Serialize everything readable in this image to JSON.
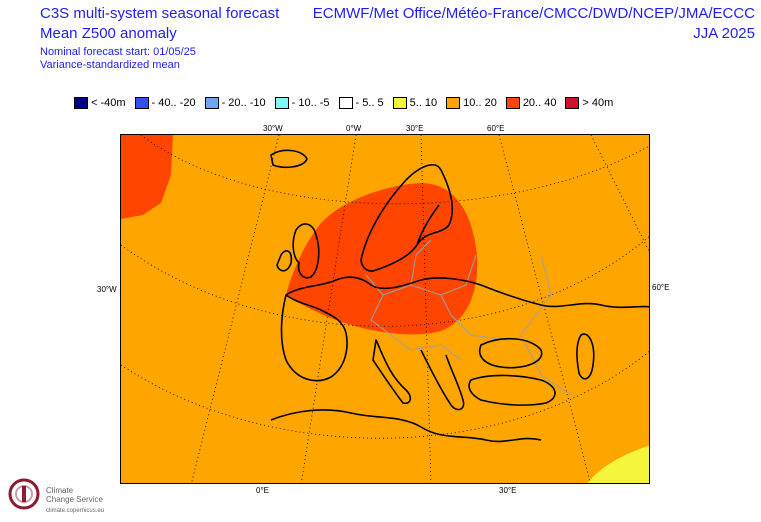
{
  "header": {
    "title_line1": "C3S multi-system seasonal forecast",
    "title_line2": "Mean Z500 anomaly",
    "nominal_start": "Nominal forecast start: 01/05/25",
    "method": "Variance-standardized mean",
    "centres": "ECMWF/Met Office/Météo-France/CMCC/DWD/NCEP/JMA/ECCC",
    "season": "JJA 2025"
  },
  "legend": [
    {
      "label": "< -40m",
      "color": "#00008b"
    },
    {
      "label": "- 40.. -20",
      "color": "#3050f0"
    },
    {
      "label": "- 20.. -10",
      "color": "#6ca6f0"
    },
    {
      "label": "- 10.. -5",
      "color": "#7ff7f7"
    },
    {
      "label": "- 5.. 5",
      "color": "#ffffff"
    },
    {
      "label": "5.. 10",
      "color": "#f5f53c"
    },
    {
      "label": "10.. 20",
      "color": "#ffa500"
    },
    {
      "label": "20.. 40",
      "color": "#ff4500"
    },
    {
      "label": "> 40m",
      "color": "#d0102a"
    }
  ],
  "axis_labels": {
    "top_30w": "30°W",
    "top_0": "0°W",
    "top_30e": "30°E",
    "top_60e": "60°E",
    "left_30w": "30°W",
    "right_60e": "60°E",
    "bottom_0": "0°E",
    "bottom_30e": "30°E"
  },
  "logo": {
    "line1": "Climate",
    "line2": "Change Service",
    "url": "climate.copernicus.eu"
  },
  "colors": {
    "header_text": "#1f1ff5",
    "map_background": "#ffa500",
    "anomaly_core": "#ff4500",
    "anomaly_low": "#f5f53c"
  }
}
